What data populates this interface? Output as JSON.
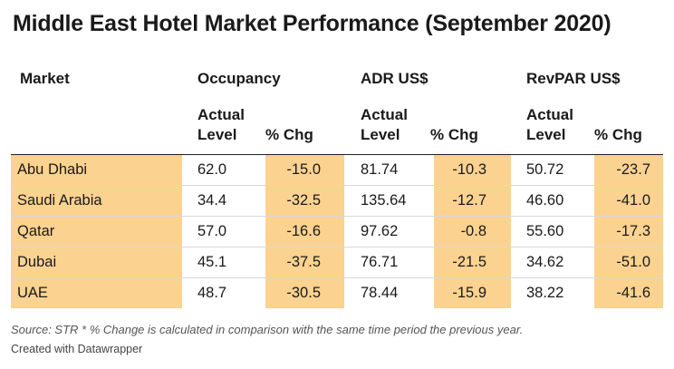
{
  "chart_data": {
    "type": "table",
    "title": "Middle East Hotel Market Performance (September 2020)",
    "header": {
      "market": "Market",
      "occupancy": "Occupancy",
      "adr": "ADR US$",
      "revpar": "RevPAR US$"
    },
    "subheader": {
      "actual": "Actual",
      "level": "Level",
      "pct": "% Chg"
    },
    "rows": [
      {
        "market": "Abu Dhabi",
        "occ": "62.0",
        "occ_chg": "-15.0",
        "adr": "81.74",
        "adr_chg": "-10.3",
        "revpar": "50.72",
        "revpar_chg": "-23.7"
      },
      {
        "market": "Saudi Arabia",
        "occ": "34.4",
        "occ_chg": "-32.5",
        "adr": "135.64",
        "adr_chg": "-12.7",
        "revpar": "46.60",
        "revpar_chg": "-41.0"
      },
      {
        "market": "Qatar",
        "occ": "57.0",
        "occ_chg": "-16.6",
        "adr": "97.62",
        "adr_chg": "-0.8",
        "revpar": "55.60",
        "revpar_chg": "-17.3"
      },
      {
        "market": "Dubai",
        "occ": "45.1",
        "occ_chg": "-37.5",
        "adr": "76.71",
        "adr_chg": "-21.5",
        "revpar": "34.62",
        "revpar_chg": "-51.0"
      },
      {
        "market": "UAE",
        "occ": "48.7",
        "occ_chg": "-30.5",
        "adr": "78.44",
        "adr_chg": "-15.9",
        "revpar": "38.22",
        "revpar_chg": "-41.6"
      }
    ],
    "highlight_color": "#fbd290"
  },
  "footer": {
    "source": "Source: STR * % Change is calculated in comparison with the same time period the previous year.",
    "credit": "Created with Datawrapper"
  }
}
